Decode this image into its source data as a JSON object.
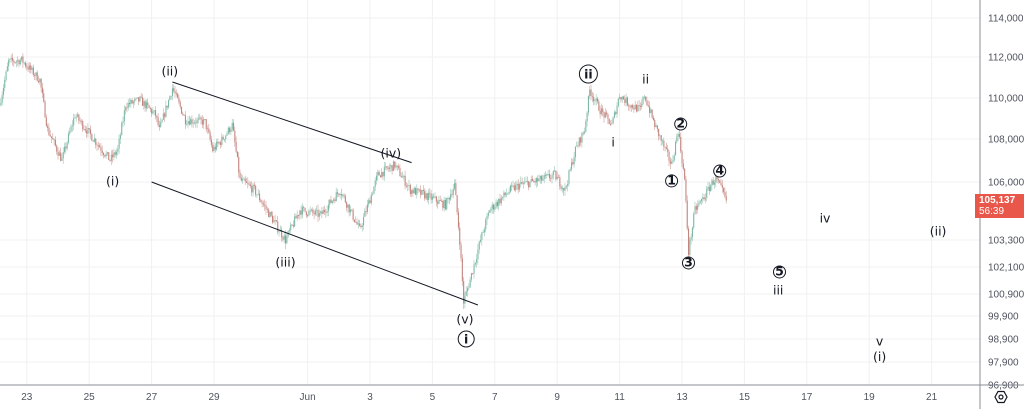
{
  "chart_data": {
    "type": "candlestick",
    "interval": "1h",
    "grid": true,
    "colors": {
      "up": "#7db8a6",
      "down": "#c4857f",
      "wick": "#a9adb5",
      "last_price_bg": "#e8574a",
      "lines": "#131722"
    },
    "x_ticks": [
      {
        "label": "23",
        "date": "05-23 00"
      },
      {
        "label": "25",
        "date": "05-25 00"
      },
      {
        "label": "27",
        "date": "05-27 00"
      },
      {
        "label": "29",
        "date": "05-29 00"
      },
      {
        "label": "Jun",
        "date": "06-01 00"
      },
      {
        "label": "3",
        "date": "06-03 00"
      },
      {
        "label": "5",
        "date": "06-05 00"
      },
      {
        "label": "7",
        "date": "06-07 00"
      },
      {
        "label": "9",
        "date": "06-09 00"
      },
      {
        "label": "11",
        "date": "06-11 00"
      },
      {
        "label": "13",
        "date": "06-13 00"
      },
      {
        "label": "15",
        "date": "06-15 00"
      },
      {
        "label": "17",
        "date": "06-17 00"
      },
      {
        "label": "19",
        "date": "06-19 00"
      },
      {
        "label": "21",
        "date": "06-21 00"
      }
    ],
    "y_ticks": [
      "114,000",
      "112,000",
      "110,000",
      "108,000",
      "106,000",
      "103,300",
      "102,100",
      "100,900",
      "99,900",
      "98,900",
      "97,900",
      "96,900"
    ],
    "last_price": "105,137",
    "countdown": "56:39",
    "price_path": [
      [
        "05-22 03",
        109660
      ],
      [
        "05-22 10",
        111760
      ],
      [
        "05-22 20",
        111850
      ],
      [
        "05-23 10",
        110880
      ],
      [
        "05-23 16",
        108440
      ],
      [
        "05-24 03",
        107020
      ],
      [
        "05-24 13",
        109170
      ],
      [
        "05-25 01",
        108200
      ],
      [
        "05-25 16",
        107020
      ],
      [
        "05-25 22",
        107490
      ],
      [
        "05-26 04",
        109660
      ],
      [
        "05-26 15",
        109900
      ],
      [
        "05-27 03",
        109170
      ],
      [
        "05-27 06",
        108440
      ],
      [
        "05-27 16",
        110490
      ],
      [
        "05-28 02",
        108930
      ],
      [
        "05-28 17",
        108830
      ],
      [
        "05-28 23",
        107490
      ],
      [
        "05-29 06",
        107950
      ],
      [
        "05-29 14",
        108680
      ],
      [
        "05-29 20",
        106090
      ],
      [
        "05-30 07",
        105630
      ],
      [
        "05-30 19",
        104460
      ],
      [
        "05-31 07",
        103300
      ],
      [
        "05-31 18",
        104700
      ],
      [
        "06-01 10",
        104460
      ],
      [
        "06-02 01",
        105630
      ],
      [
        "06-02 16",
        103770
      ],
      [
        "06-03 01",
        105400
      ],
      [
        "06-03 06",
        106330
      ],
      [
        "06-03 19",
        106790
      ],
      [
        "06-04 07",
        105630
      ],
      [
        "06-04 18",
        105400
      ],
      [
        "06-05 10",
        104930
      ],
      [
        "06-05 17",
        105860
      ],
      [
        "06-05 21",
        103300
      ],
      [
        "06-06 00",
        100540
      ],
      [
        "06-06 05",
        101530
      ],
      [
        "06-06 13",
        103300
      ],
      [
        "06-06 20",
        104700
      ],
      [
        "06-07 12",
        105630
      ],
      [
        "06-07 19",
        105860
      ],
      [
        "06-08 11",
        106090
      ],
      [
        "06-08 22",
        106330
      ],
      [
        "06-09 06",
        105630
      ],
      [
        "06-09 14",
        107490
      ],
      [
        "06-09 21",
        108440
      ],
      [
        "06-10 01",
        110390
      ],
      [
        "06-10 09",
        109420
      ],
      [
        "06-10 18",
        108680
      ],
      [
        "06-11 00",
        110150
      ],
      [
        "06-11 08",
        109660
      ],
      [
        "06-11 16",
        109420
      ],
      [
        "06-11 19",
        110150
      ],
      [
        "06-12 03",
        108680
      ],
      [
        "06-12 11",
        107490
      ],
      [
        "06-12 16",
        106790
      ],
      [
        "06-12 21",
        108440
      ],
      [
        "06-13 02",
        106090
      ],
      [
        "06-13 05",
        102770
      ],
      [
        "06-13 10",
        104700
      ],
      [
        "06-13 18",
        105400
      ],
      [
        "06-13 22",
        105860
      ],
      [
        "06-14 02",
        106190
      ],
      [
        "06-14 10",
        105137
      ]
    ],
    "trendlines": [
      {
        "from": [
          "05-27 16",
          110780
        ],
        "to": [
          "06-04 08",
          106900
        ]
      },
      {
        "from": [
          "05-27 00",
          106000
        ],
        "to": [
          "06-06 11",
          100400
        ]
      }
    ],
    "annotations": [
      {
        "text": "(ii)",
        "date": "05-27 14",
        "price": 111320
      },
      {
        "text": "(i)",
        "date": "05-25 18",
        "price": 106050
      },
      {
        "text": "(iii)",
        "date": "05-31 07",
        "price": 102320
      },
      {
        "text": "(iv)",
        "date": "06-03 16",
        "price": 107350
      },
      {
        "text": "(v)",
        "date": "06-06 01",
        "price": 99760
      },
      {
        "text": "i",
        "date": "06-06 02",
        "price": 98900,
        "circled": true
      },
      {
        "text": "ii",
        "date": "06-10 00",
        "price": 111170,
        "circled": true
      },
      {
        "text": "ii",
        "date": "06-11 20",
        "price": 110930
      },
      {
        "text": "i",
        "date": "06-10 19",
        "price": 107860
      },
      {
        "text": "2",
        "date": "06-12 23",
        "price": 108730,
        "circled": true
      },
      {
        "text": "1",
        "date": "06-12 16",
        "price": 106050,
        "circled": true
      },
      {
        "text": "3",
        "date": "06-13 05",
        "price": 102280,
        "circled": true
      },
      {
        "text": "4",
        "date": "06-14 05",
        "price": 106510,
        "circled": true
      },
      {
        "text": "5",
        "date": "06-16 03",
        "price": 101880,
        "circled": true
      },
      {
        "text": "iii",
        "date": "06-16 02",
        "price": 101080
      },
      {
        "text": "iv",
        "date": "06-17 14",
        "price": 104320
      },
      {
        "text": "v",
        "date": "06-19 08",
        "price": 98810
      },
      {
        "text": "(i)",
        "date": "06-19 08",
        "price": 98150
      },
      {
        "text": "(ii)",
        "date": "06-21 05",
        "price": 103730
      }
    ]
  },
  "icons": {
    "settings": "gear-icon"
  }
}
